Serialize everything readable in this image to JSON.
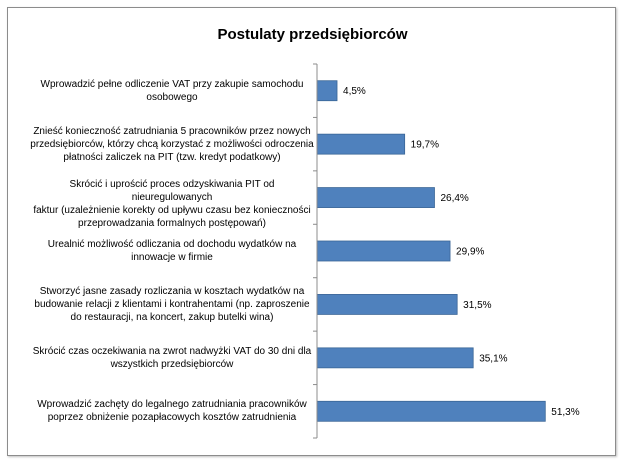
{
  "chart_data": {
    "type": "bar",
    "orientation": "horizontal",
    "title": "Postulaty przedsiębiorców",
    "xlabel": "",
    "ylabel": "",
    "xlim": [
      0,
      100
    ],
    "grid": false,
    "categories": [
      "Wprowadzić pełne odliczenie VAT przy zakupie samochodu osobowego",
      "Znieść konieczność zatrudniania 5 pracowników przez nowych przedsiębiorców, którzy chcą korzystać z możliwości odroczenia płatności zaliczek na PIT (tzw. kredyt podatkowy)",
      "Skrócić i uprościć proces odzyskiwania PIT od nieuregulowanych faktur (uzależnienie korekty od upływu czasu bez konieczności przeprowadzania formalnych postępowań)",
      "Urealnić możliwość odliczania od dochodu wydatków na innowacje w firmie",
      "Stworzyć jasne zasady rozliczania w kosztach wydatków na budowanie relacji z klientami i kontrahentami (np. zaproszenie do restauracji, na koncert, zakup butelki wina)",
      "Skrócić czas oczekiwania na zwrot nadwyżki VAT do 30 dni dla wszystkich przedsiębiorców",
      "Wprowadzić zachęty do legalnego zatrudniania pracowników poprzez obniżenie pozapłacowych kosztów zatrudnienia"
    ],
    "category_lines": [
      [
        "Wprowadzić pełne odliczenie VAT przy zakupie samochodu",
        "osobowego"
      ],
      [
        "Znieść konieczność zatrudniania 5 pracowników przez nowych",
        "przedsiębiorców, którzy chcą korzystać z możliwości odroczenia",
        "płatności zaliczek na PIT (tzw. kredyt podatkowy)"
      ],
      [
        "Skrócić i uprościć proces odzyskiwania PIT od nieuregulowanych",
        "faktur (uzależnienie korekty od upływu czasu bez konieczności",
        "przeprowadzania formalnych postępowań)"
      ],
      [
        "Urealnić możliwość odliczania od dochodu wydatków na",
        "innowacje w firmie"
      ],
      [
        "Stworzyć jasne zasady rozliczania w kosztach wydatków na",
        "budowanie relacji z klientami i kontrahentami (np. zaproszenie",
        "do restauracji, na koncert, zakup butelki wina)"
      ],
      [
        "Skrócić czas oczekiwania na zwrot nadwyżki VAT do 30 dni dla",
        "wszystkich przedsiębiorców"
      ],
      [
        "Wprowadzić zachęty do legalnego zatrudniania pracowników",
        "poprzez obniżenie pozapłacowych kosztów zatrudnienia"
      ]
    ],
    "values": [
      4.5,
      19.7,
      26.4,
      29.9,
      31.5,
      35.1,
      51.3
    ],
    "data_labels": [
      "4,5%",
      "19,7%",
      "26,4%",
      "29,9%",
      "31,5%",
      "35,1%",
      "51,3%"
    ],
    "bar_color": "#4f81bd",
    "bar_border_color": "#3a6596"
  }
}
